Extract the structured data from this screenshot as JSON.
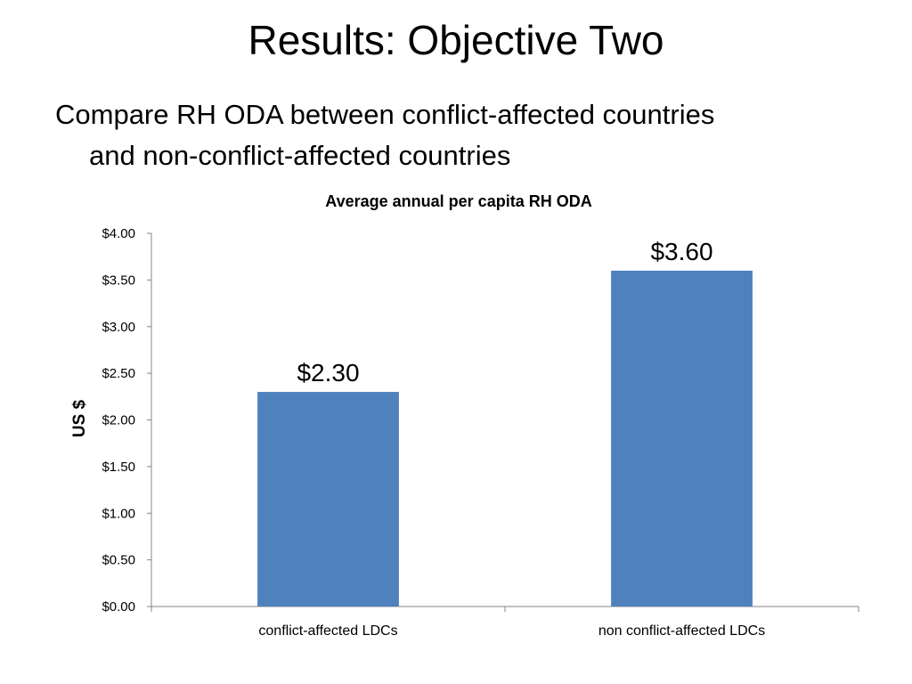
{
  "slide": {
    "title": "Results: Objective Two",
    "bullet_line1": "Compare RH ODA between conflict-affected countries",
    "bullet_line2": "and non-conflict-affected countries"
  },
  "chart_data": {
    "type": "bar",
    "title": "Average annual per capita RH ODA",
    "xlabel": "",
    "ylabel": "US $",
    "categories": [
      "conflict-affected LDCs",
      "non conflict-affected LDCs"
    ],
    "values": [
      2.3,
      3.6
    ],
    "data_labels": [
      "$2.30",
      "$3.60"
    ],
    "ylim": [
      0,
      4
    ],
    "yticks": [
      0,
      0.5,
      1,
      1.5,
      2,
      2.5,
      3,
      3.5,
      4
    ],
    "ytick_labels": [
      "$0.00",
      "$0.50",
      "$1.00",
      "$1.50",
      "$2.00",
      "$2.50",
      "$3.00",
      "$3.50",
      "$4.00"
    ],
    "bar_color": "#4f81bd",
    "axis_color": "#868686",
    "grid": false,
    "legend": "none"
  }
}
